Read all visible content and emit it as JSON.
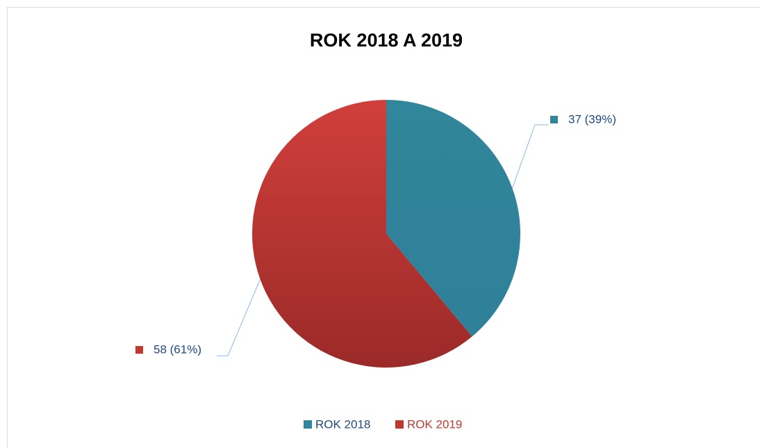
{
  "chart_data": {
    "type": "pie",
    "title": "ROK 2018 A 2019",
    "categories": [
      "ROK 2018",
      "ROK 2019"
    ],
    "values": [
      37,
      58
    ],
    "value_labels": [
      "37 (39%)",
      "58 (61%)"
    ],
    "colors": [
      "#31869b",
      "#c0392f"
    ],
    "legend": "bottom"
  }
}
